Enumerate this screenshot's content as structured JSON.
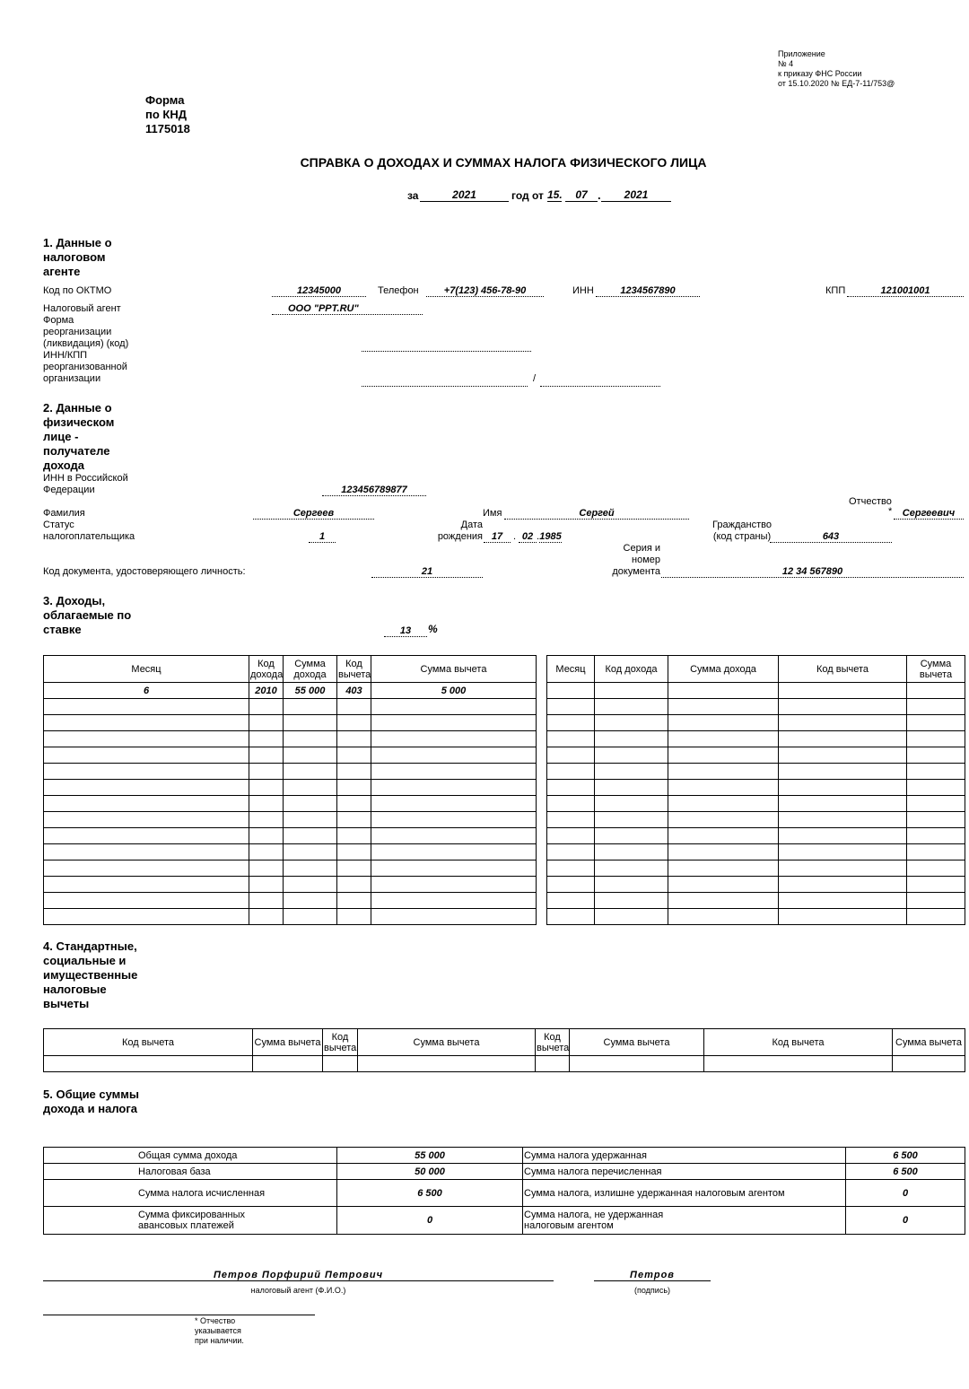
{
  "appendix": {
    "line1": "Приложение",
    "line2": "№ 4",
    "line3": "к приказу ФНС России",
    "line4": "от 15.10.2020 № ЕД-7-11/753@"
  },
  "form": {
    "line1": "Форма",
    "line2": "по КНД",
    "line3": "1175018"
  },
  "title": "СПРАВКА О ДОХОДАХ И СУММАХ НАЛОГА ФИЗИЧЕСКОГО ЛИЦА",
  "period": {
    "za": "за",
    "year": "2021",
    "god_ot": "год от",
    "day": "15.",
    "month": "07",
    "dot": ".",
    "doc_year": "2021"
  },
  "s1": {
    "title": "1. Данные о налоговом агенте",
    "oktmo_label": "Код по ОКТМО",
    "oktmo": "12345000",
    "phone_label": "Телефон",
    "phone": "+7(123) 456-78-90",
    "inn_label": "ИНН",
    "inn": "1234567890",
    "kpp_label": "КПП",
    "kpp": "121001001",
    "agent_label": "Налоговый агент",
    "agent": "ООО \"PPT.RU\"",
    "reorg_label": "Форма реорганизации (ликвидация) (код)",
    "reorg_inn_label": "ИНН/КПП реорганизованной организации",
    "slash": "/"
  },
  "s2": {
    "title": "2. Данные о физическом лице - получателе дохода",
    "inn_label": "ИНН в Российской Федерации",
    "inn": "123456789877",
    "surname_label": "Фамилия",
    "surname": "Сергеев",
    "name_label": "Имя",
    "name": "Сергей",
    "patronymic_label": "Отчество",
    "asterisk": "*",
    "patronymic": "Сергеевич",
    "status_label": "Статус налогоплательщика",
    "status": "1",
    "birth_label": "Дата рождения",
    "birth_day": "17",
    "birth_month": "02",
    "birth_year": "1985",
    "citizen_label": "Гражданство (код страны)",
    "citizen": "643",
    "doccode_label": "Код документа, удостоверяющего личность:",
    "doccode": "21",
    "docnum_label": "Серия и номер документа",
    "docnum": "12 34 567890"
  },
  "s3": {
    "title": "3. Доходы, облагаемые по ставке",
    "rate": "13",
    "percent": "%",
    "left_headers": [
      "Месяц",
      "Код дохода",
      "Сумма дохода",
      "Код вычета",
      "Сумма вычета"
    ],
    "right_headers": [
      "Месяц",
      "Код дохода",
      "Сумма дохода",
      "Код вычета",
      "Сумма вычета"
    ],
    "rows": [
      [
        "6",
        "2010",
        "55 000",
        "403",
        "5 000"
      ]
    ]
  },
  "s4": {
    "title": "4. Стандартные, социальные и имущественные налоговые вычеты",
    "headers": [
      "Код вычета",
      "Сумма вычета",
      "Код вычета",
      "Сумма вычета",
      "Код вычета",
      "Сумма вычета",
      "Код вычета",
      "Сумма вычета"
    ]
  },
  "s5": {
    "title": "5. Общие суммы дохода и налога",
    "rows": [
      [
        "Общая сумма дохода",
        "55 000",
        "Сумма налога удержанная",
        "6 500"
      ],
      [
        "Налоговая база",
        "50 000",
        "Сумма налога перечисленная",
        "6 500"
      ],
      [
        "Сумма налога исчисленная",
        "6 500",
        "Сумма налога, излишне удержанная налоговым агентом",
        "0"
      ],
      [
        "Сумма фиксированных авансовых платежей",
        "0",
        "Сумма налога, не удержанная налоговым агентом",
        "0"
      ]
    ]
  },
  "sign": {
    "agent_name": "Петров Порфирий Петрович",
    "agent_caption": "налоговый агент (Ф.И.О.)",
    "signature": "Петров",
    "signature_caption": "(подпись)"
  },
  "footnote": "* Отчество указывается при наличии."
}
